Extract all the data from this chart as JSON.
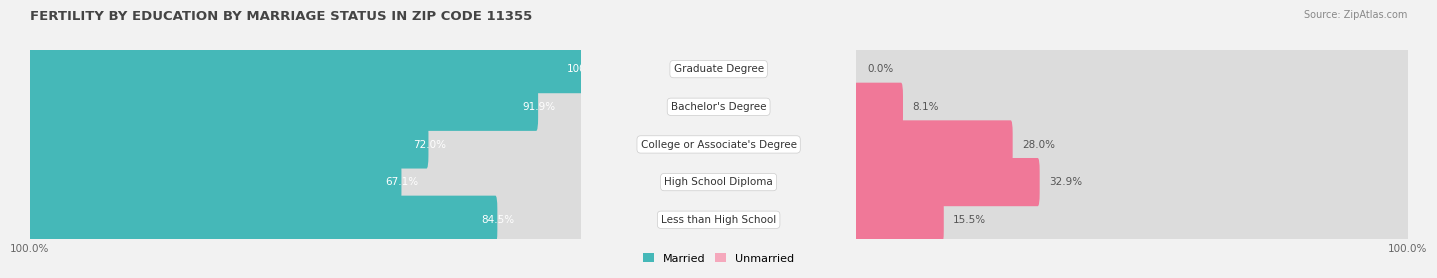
{
  "title": "FERTILITY BY EDUCATION BY MARRIAGE STATUS IN ZIP CODE 11355",
  "source": "Source: ZipAtlas.com",
  "categories": [
    "Less than High School",
    "High School Diploma",
    "College or Associate's Degree",
    "Bachelor's Degree",
    "Graduate Degree"
  ],
  "married": [
    84.5,
    67.1,
    72.0,
    91.9,
    100.0
  ],
  "unmarried": [
    15.5,
    32.9,
    28.0,
    8.1,
    0.0
  ],
  "married_color": "#45b8b8",
  "unmarried_color": "#f07898",
  "unmarried_light_color": "#f5a8bc",
  "bg_color": "#f2f2f2",
  "bar_bg_color": "#dcdcdc",
  "title_fontsize": 9.5,
  "label_fontsize": 7.5,
  "cat_fontsize": 7.5,
  "tick_fontsize": 7.5,
  "bar_height": 0.58,
  "x_left_label": "100.0%",
  "x_right_label": "100.0%"
}
